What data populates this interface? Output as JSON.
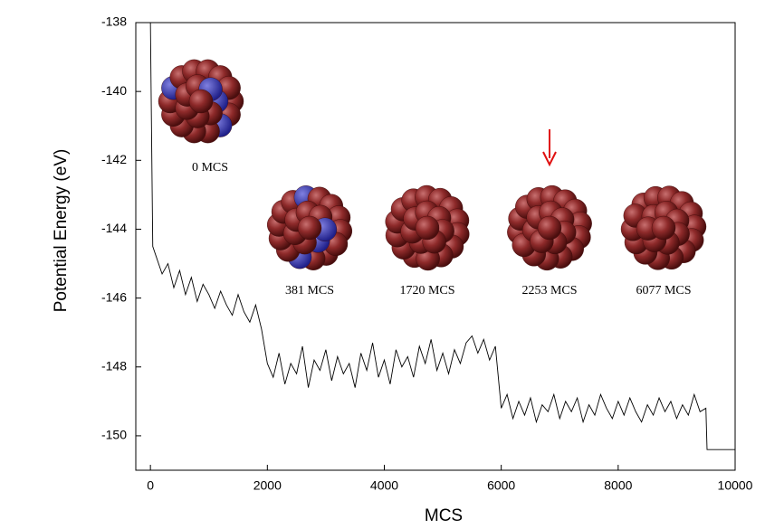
{
  "chart_data": {
    "type": "line",
    "xlabel": "MCS",
    "ylabel": "Potential Energy (eV)",
    "xlim": [
      -250,
      10000
    ],
    "ylim": [
      -151,
      -138
    ],
    "xticks": [
      0,
      2000,
      4000,
      6000,
      8000,
      10000
    ],
    "yticks": [
      -138,
      -140,
      -142,
      -144,
      -146,
      -148,
      -150
    ],
    "annotations": [
      "0 MCS",
      "381 MCS",
      "1720 MCS",
      "2253 MCS",
      "6077 MCS"
    ],
    "series": [
      {
        "name": "Potential Energy",
        "color": "#000000",
        "x": [
          0,
          20,
          40,
          100,
          200,
          300,
          400,
          500,
          600,
          700,
          800,
          900,
          1000,
          1100,
          1200,
          1300,
          1400,
          1500,
          1600,
          1700,
          1800,
          1900,
          2000,
          2100,
          2200,
          2300,
          2400,
          2500,
          2600,
          2700,
          2800,
          2900,
          3000,
          3100,
          3200,
          3300,
          3400,
          3500,
          3600,
          3700,
          3800,
          3900,
          4000,
          4100,
          4200,
          4300,
          4400,
          4500,
          4600,
          4700,
          4800,
          4900,
          5000,
          5100,
          5200,
          5300,
          5400,
          5500,
          5600,
          5700,
          5800,
          5900,
          6000,
          6100,
          6200,
          6300,
          6400,
          6500,
          6600,
          6700,
          6800,
          6900,
          7000,
          7100,
          7200,
          7300,
          7400,
          7500,
          7600,
          7700,
          7800,
          7900,
          8000,
          8100,
          8200,
          8300,
          8400,
          8500,
          8600,
          8700,
          8800,
          8900,
          9000,
          9100,
          9200,
          9300,
          9400,
          9500,
          9520,
          10000
        ],
        "values": [
          -138,
          -141.3,
          -144.5,
          -144.8,
          -145.3,
          -145.0,
          -145.7,
          -145.2,
          -145.9,
          -145.4,
          -146.1,
          -145.6,
          -145.9,
          -146.3,
          -145.8,
          -146.2,
          -146.5,
          -145.9,
          -146.4,
          -146.7,
          -146.2,
          -146.9,
          -147.9,
          -148.3,
          -147.6,
          -148.5,
          -147.9,
          -148.2,
          -147.4,
          -148.6,
          -147.8,
          -148.1,
          -147.5,
          -148.4,
          -147.7,
          -148.2,
          -147.9,
          -148.6,
          -147.6,
          -148.1,
          -147.3,
          -148.3,
          -147.8,
          -148.5,
          -147.5,
          -148.0,
          -147.7,
          -148.3,
          -147.4,
          -147.9,
          -147.2,
          -148.1,
          -147.6,
          -148.2,
          -147.5,
          -147.9,
          -147.3,
          -147.1,
          -147.6,
          -147.2,
          -147.8,
          -147.4,
          -149.2,
          -148.8,
          -149.5,
          -149.0,
          -149.4,
          -148.9,
          -149.6,
          -149.1,
          -149.3,
          -148.8,
          -149.5,
          -149.0,
          -149.3,
          -148.9,
          -149.6,
          -149.1,
          -149.4,
          -148.8,
          -149.2,
          -149.5,
          -149.0,
          -149.4,
          -148.9,
          -149.3,
          -149.6,
          -149.1,
          -149.4,
          -148.9,
          -149.3,
          -149.0,
          -149.5,
          -149.1,
          -149.4,
          -148.8,
          -149.3,
          -149.2,
          -150.4,
          -150.4
        ]
      }
    ]
  }
}
